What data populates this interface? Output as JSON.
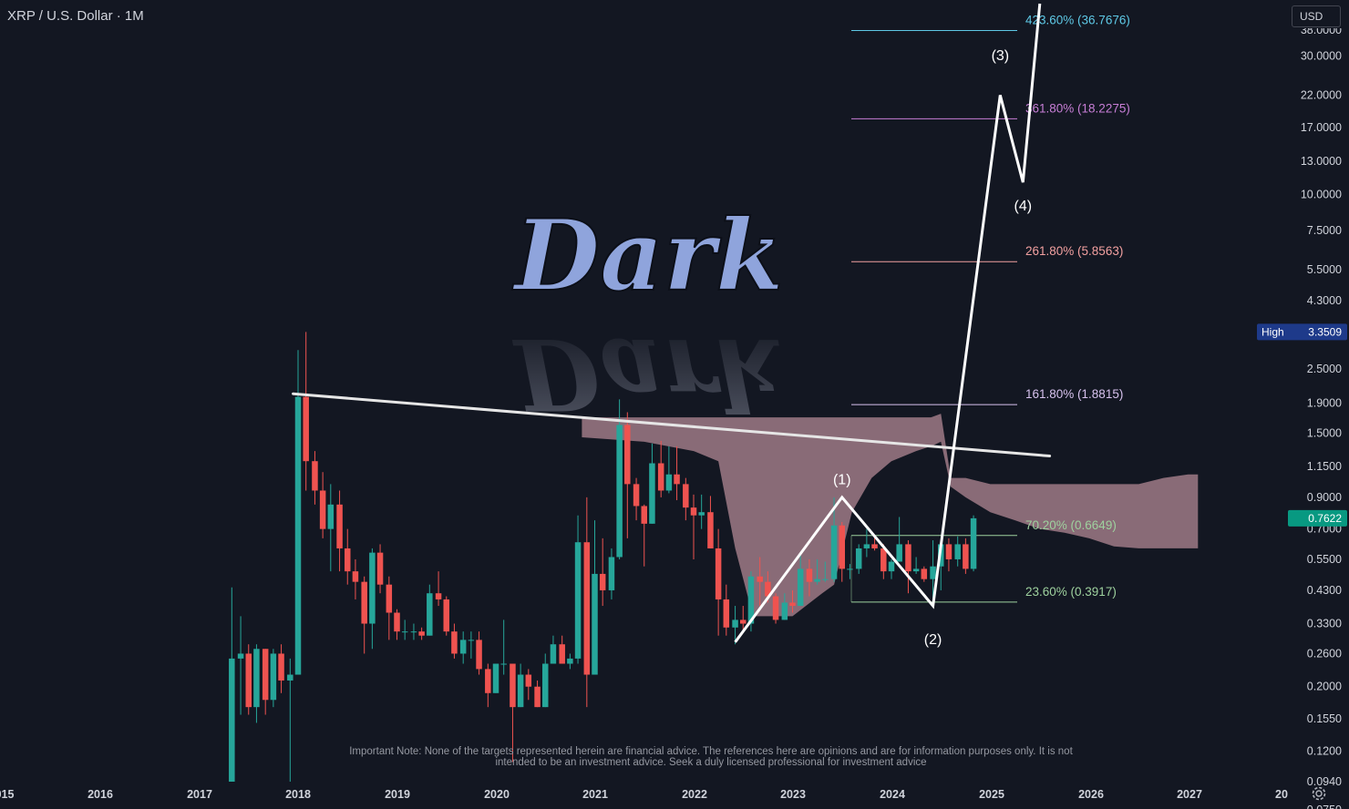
{
  "header": {
    "symbol_title": "XRP / U.S. Dollar · 1M",
    "currency": "USD"
  },
  "watermark_text": "Dark",
  "disclaimer": "Important Note: None of the targets represented herein are financial advice. The references here are opinions and are for information purposes only. It is not intended to be an investment advice. Seek a duly licensed professional for investment advice",
  "icons": {
    "settings": "gear-icon"
  },
  "colors": {
    "background": "#131722",
    "up_candle": "#26a69a",
    "down_candle": "#ef5350",
    "cloud": "#d9a4b0",
    "trendline": "#e6e6e6",
    "wave_path": "#ffffff",
    "high_badge": "#1e3a8a",
    "last_price_badge": "#089981"
  },
  "chart_data": {
    "type": "candlestick",
    "title": "XRP / U.S. Dollar · 1M",
    "y_scale": "log",
    "ylim": [
      0.075,
      38
    ],
    "xlim": [
      2014.98,
      2027.9
    ],
    "grid": false,
    "y_ticks": [
      "30.0000",
      "22.0000",
      "17.0000",
      "13.0000",
      "10.0000",
      "7.5000",
      "5.5000",
      "4.3000",
      "2.5000",
      "1.9000",
      "1.5000",
      "1.1500",
      "0.9000",
      "0.7000",
      "0.5500",
      "0.4300",
      "0.3300",
      "0.2600",
      "0.2000",
      "0.1550",
      "0.1200",
      "0.0940",
      "0.0750"
    ],
    "x_ticks": [
      "015",
      "2016",
      "2017",
      "2018",
      "2019",
      "2020",
      "2021",
      "2022",
      "2023",
      "2024",
      "2025",
      "2026",
      "2027",
      "20"
    ],
    "price_badges": [
      {
        "label": "High",
        "value": "3.3509"
      },
      {
        "label": "",
        "value": "0.7622"
      }
    ],
    "fib_levels": [
      {
        "label": "423.60% (36.7676)",
        "value": 36.7676,
        "color": "#5ec8e5"
      },
      {
        "label": "361.80% (18.2275)",
        "value": 18.2275,
        "color": "#c77ed6"
      },
      {
        "label": "261.80% (5.8563)",
        "value": 5.8563,
        "color": "#f2a0a0"
      },
      {
        "label": "161.80% (1.8815)",
        "value": 1.8815,
        "color": "#d7c2ee"
      },
      {
        "label": "70.20% (0.6649)",
        "value": 0.6649,
        "color": "#9ed19e"
      },
      {
        "label": "23.60% (0.3917)",
        "value": 0.3917,
        "color": "#9ed19e"
      }
    ],
    "wave_labels": [
      {
        "label": "(1)",
        "x": 2023.5,
        "y": 1.0
      },
      {
        "label": "(2)",
        "x": 2024.42,
        "y": 0.28
      },
      {
        "label": "(3)",
        "x": 2025.1,
        "y": 29
      },
      {
        "label": "(4)",
        "x": 2025.33,
        "y": 8.8
      }
    ],
    "wave_path": [
      {
        "x": 2022.42,
        "y": 0.285
      },
      {
        "x": 2023.5,
        "y": 0.9
      },
      {
        "x": 2024.42,
        "y": 0.38
      },
      {
        "x": 2025.1,
        "y": 22
      },
      {
        "x": 2025.33,
        "y": 11
      },
      {
        "x": 2025.5,
        "y": 47
      }
    ],
    "trendline": [
      {
        "x": 2017.95,
        "y": 2.05
      },
      {
        "x": 2025.6,
        "y": 1.25
      }
    ],
    "cloud": {
      "x": [
        2020.87,
        2021.5,
        2022.0,
        2022.25,
        2022.42,
        2022.6,
        2023.0,
        2023.3,
        2023.42,
        2023.6,
        2023.8,
        2024.0,
        2024.25,
        2024.4,
        2024.5,
        2024.6,
        2024.75,
        2025.0,
        2025.25,
        2025.5,
        2025.75,
        2026.0,
        2026.25,
        2026.5,
        2026.75,
        2027.0,
        2027.1
      ],
      "upper": [
        1.7,
        1.7,
        1.7,
        1.7,
        1.7,
        1.7,
        1.7,
        1.7,
        1.7,
        1.7,
        1.7,
        1.7,
        1.7,
        1.7,
        1.75,
        1.05,
        1.05,
        1.0,
        1.0,
        1.0,
        1.0,
        1.0,
        1.0,
        1.0,
        1.05,
        1.08,
        1.08
      ],
      "lower": [
        1.45,
        1.4,
        1.3,
        1.2,
        0.6,
        0.35,
        0.35,
        0.42,
        0.45,
        0.8,
        1.05,
        1.2,
        1.3,
        1.35,
        1.4,
        0.98,
        0.9,
        0.8,
        0.75,
        0.7,
        0.68,
        0.65,
        0.61,
        0.6,
        0.6,
        0.6,
        0.6
      ]
    },
    "candles": [
      {
        "x": 2017.33,
        "o": 0.05,
        "h": 0.44,
        "l": 0.05,
        "c": 0.25
      },
      {
        "x": 2017.42,
        "o": 0.25,
        "h": 0.35,
        "l": 0.16,
        "c": 0.26
      },
      {
        "x": 2017.5,
        "o": 0.26,
        "h": 0.28,
        "l": 0.16,
        "c": 0.17
      },
      {
        "x": 2017.58,
        "o": 0.17,
        "h": 0.28,
        "l": 0.15,
        "c": 0.27
      },
      {
        "x": 2017.67,
        "o": 0.27,
        "h": 0.27,
        "l": 0.16,
        "c": 0.18
      },
      {
        "x": 2017.75,
        "o": 0.18,
        "h": 0.27,
        "l": 0.17,
        "c": 0.26
      },
      {
        "x": 2017.83,
        "o": 0.26,
        "h": 0.28,
        "l": 0.19,
        "c": 0.21
      },
      {
        "x": 2017.92,
        "o": 0.21,
        "h": 0.25,
        "l": 0.05,
        "c": 0.22
      },
      {
        "x": 2018.0,
        "o": 0.22,
        "h": 2.9,
        "l": 0.22,
        "c": 2.0
      },
      {
        "x": 2018.08,
        "o": 2.0,
        "h": 3.35,
        "l": 0.95,
        "c": 1.2
      },
      {
        "x": 2018.17,
        "o": 1.2,
        "h": 1.3,
        "l": 0.85,
        "c": 0.95
      },
      {
        "x": 2018.25,
        "o": 0.95,
        "h": 1.1,
        "l": 0.65,
        "c": 0.7
      },
      {
        "x": 2018.33,
        "o": 0.7,
        "h": 1.0,
        "l": 0.5,
        "c": 0.85
      },
      {
        "x": 2018.42,
        "o": 0.85,
        "h": 0.95,
        "l": 0.5,
        "c": 0.6
      },
      {
        "x": 2018.5,
        "o": 0.6,
        "h": 0.7,
        "l": 0.45,
        "c": 0.5
      },
      {
        "x": 2018.58,
        "o": 0.5,
        "h": 0.55,
        "l": 0.4,
        "c": 0.46
      },
      {
        "x": 2018.67,
        "o": 0.46,
        "h": 0.48,
        "l": 0.26,
        "c": 0.33
      },
      {
        "x": 2018.75,
        "o": 0.33,
        "h": 0.6,
        "l": 0.27,
        "c": 0.58
      },
      {
        "x": 2018.83,
        "o": 0.58,
        "h": 0.62,
        "l": 0.42,
        "c": 0.45
      },
      {
        "x": 2018.92,
        "o": 0.45,
        "h": 0.48,
        "l": 0.29,
        "c": 0.36
      },
      {
        "x": 2019.0,
        "o": 0.36,
        "h": 0.37,
        "l": 0.29,
        "c": 0.31
      },
      {
        "x": 2019.08,
        "o": 0.31,
        "h": 0.34,
        "l": 0.29,
        "c": 0.31
      },
      {
        "x": 2019.17,
        "o": 0.31,
        "h": 0.33,
        "l": 0.29,
        "c": 0.31
      },
      {
        "x": 2019.25,
        "o": 0.31,
        "h": 0.32,
        "l": 0.29,
        "c": 0.3
      },
      {
        "x": 2019.33,
        "o": 0.3,
        "h": 0.45,
        "l": 0.3,
        "c": 0.42
      },
      {
        "x": 2019.42,
        "o": 0.42,
        "h": 0.5,
        "l": 0.38,
        "c": 0.4
      },
      {
        "x": 2019.5,
        "o": 0.4,
        "h": 0.41,
        "l": 0.3,
        "c": 0.31
      },
      {
        "x": 2019.58,
        "o": 0.31,
        "h": 0.33,
        "l": 0.25,
        "c": 0.26
      },
      {
        "x": 2019.67,
        "o": 0.26,
        "h": 0.31,
        "l": 0.24,
        "c": 0.29
      },
      {
        "x": 2019.75,
        "o": 0.29,
        "h": 0.31,
        "l": 0.25,
        "c": 0.29
      },
      {
        "x": 2019.83,
        "o": 0.29,
        "h": 0.31,
        "l": 0.22,
        "c": 0.23
      },
      {
        "x": 2019.92,
        "o": 0.23,
        "h": 0.24,
        "l": 0.17,
        "c": 0.19
      },
      {
        "x": 2020.0,
        "o": 0.19,
        "h": 0.24,
        "l": 0.19,
        "c": 0.24
      },
      {
        "x": 2020.08,
        "o": 0.24,
        "h": 0.34,
        "l": 0.22,
        "c": 0.24
      },
      {
        "x": 2020.17,
        "o": 0.24,
        "h": 0.24,
        "l": 0.11,
        "c": 0.17
      },
      {
        "x": 2020.25,
        "o": 0.17,
        "h": 0.24,
        "l": 0.17,
        "c": 0.22
      },
      {
        "x": 2020.33,
        "o": 0.22,
        "h": 0.23,
        "l": 0.18,
        "c": 0.2
      },
      {
        "x": 2020.42,
        "o": 0.2,
        "h": 0.21,
        "l": 0.17,
        "c": 0.17
      },
      {
        "x": 2020.5,
        "o": 0.17,
        "h": 0.26,
        "l": 0.17,
        "c": 0.24
      },
      {
        "x": 2020.58,
        "o": 0.24,
        "h": 0.3,
        "l": 0.24,
        "c": 0.28
      },
      {
        "x": 2020.67,
        "o": 0.28,
        "h": 0.3,
        "l": 0.24,
        "c": 0.24
      },
      {
        "x": 2020.75,
        "o": 0.24,
        "h": 0.26,
        "l": 0.23,
        "c": 0.25
      },
      {
        "x": 2020.83,
        "o": 0.25,
        "h": 0.78,
        "l": 0.24,
        "c": 0.63
      },
      {
        "x": 2020.92,
        "o": 0.63,
        "h": 0.9,
        "l": 0.17,
        "c": 0.22
      },
      {
        "x": 2021.0,
        "o": 0.22,
        "h": 0.75,
        "l": 0.22,
        "c": 0.49
      },
      {
        "x": 2021.08,
        "o": 0.49,
        "h": 0.65,
        "l": 0.38,
        "c": 0.43
      },
      {
        "x": 2021.17,
        "o": 0.43,
        "h": 0.6,
        "l": 0.4,
        "c": 0.56
      },
      {
        "x": 2021.25,
        "o": 0.56,
        "h": 1.96,
        "l": 0.55,
        "c": 1.6
      },
      {
        "x": 2021.33,
        "o": 1.6,
        "h": 1.77,
        "l": 0.65,
        "c": 1.0
      },
      {
        "x": 2021.42,
        "o": 1.0,
        "h": 1.05,
        "l": 0.75,
        "c": 0.84
      },
      {
        "x": 2021.5,
        "o": 0.84,
        "h": 0.85,
        "l": 0.52,
        "c": 0.73
      },
      {
        "x": 2021.58,
        "o": 0.73,
        "h": 1.38,
        "l": 0.73,
        "c": 1.18
      },
      {
        "x": 2021.67,
        "o": 1.18,
        "h": 1.41,
        "l": 0.9,
        "c": 0.95
      },
      {
        "x": 2021.75,
        "o": 0.95,
        "h": 1.35,
        "l": 0.93,
        "c": 1.08
      },
      {
        "x": 2021.83,
        "o": 1.08,
        "h": 1.35,
        "l": 0.88,
        "c": 1.0
      },
      {
        "x": 2021.92,
        "o": 1.0,
        "h": 1.05,
        "l": 0.75,
        "c": 0.83
      },
      {
        "x": 2022.0,
        "o": 0.83,
        "h": 0.92,
        "l": 0.55,
        "c": 0.78
      },
      {
        "x": 2022.08,
        "o": 0.78,
        "h": 0.92,
        "l": 0.7,
        "c": 0.8
      },
      {
        "x": 2022.17,
        "o": 0.8,
        "h": 0.91,
        "l": 0.6,
        "c": 0.6
      },
      {
        "x": 2022.25,
        "o": 0.6,
        "h": 0.7,
        "l": 0.3,
        "c": 0.4
      },
      {
        "x": 2022.33,
        "o": 0.4,
        "h": 0.45,
        "l": 0.3,
        "c": 0.32
      },
      {
        "x": 2022.42,
        "o": 0.32,
        "h": 0.38,
        "l": 0.28,
        "c": 0.34
      },
      {
        "x": 2022.5,
        "o": 0.34,
        "h": 0.38,
        "l": 0.31,
        "c": 0.33
      },
      {
        "x": 2022.58,
        "o": 0.33,
        "h": 0.5,
        "l": 0.31,
        "c": 0.48
      },
      {
        "x": 2022.67,
        "o": 0.48,
        "h": 0.56,
        "l": 0.38,
        "c": 0.46
      },
      {
        "x": 2022.75,
        "o": 0.46,
        "h": 0.5,
        "l": 0.39,
        "c": 0.41
      },
      {
        "x": 2022.83,
        "o": 0.41,
        "h": 0.42,
        "l": 0.33,
        "c": 0.34
      },
      {
        "x": 2022.92,
        "o": 0.34,
        "h": 0.42,
        "l": 0.34,
        "c": 0.39
      },
      {
        "x": 2023.0,
        "o": 0.39,
        "h": 0.43,
        "l": 0.36,
        "c": 0.38
      },
      {
        "x": 2023.08,
        "o": 0.38,
        "h": 0.58,
        "l": 0.38,
        "c": 0.51
      },
      {
        "x": 2023.17,
        "o": 0.51,
        "h": 0.55,
        "l": 0.41,
        "c": 0.46
      },
      {
        "x": 2023.25,
        "o": 0.46,
        "h": 0.55,
        "l": 0.45,
        "c": 0.47
      },
      {
        "x": 2023.33,
        "o": 0.47,
        "h": 0.54,
        "l": 0.46,
        "c": 0.47
      },
      {
        "x": 2023.42,
        "o": 0.47,
        "h": 0.9,
        "l": 0.46,
        "c": 0.72
      },
      {
        "x": 2023.5,
        "o": 0.72,
        "h": 0.74,
        "l": 0.46,
        "c": 0.51
      },
      {
        "x": 2023.58,
        "o": 0.51,
        "h": 0.53,
        "l": 0.47,
        "c": 0.51
      },
      {
        "x": 2023.67,
        "o": 0.51,
        "h": 0.62,
        "l": 0.49,
        "c": 0.6
      },
      {
        "x": 2023.75,
        "o": 0.6,
        "h": 0.7,
        "l": 0.56,
        "c": 0.62
      },
      {
        "x": 2023.83,
        "o": 0.62,
        "h": 0.66,
        "l": 0.59,
        "c": 0.6
      },
      {
        "x": 2023.92,
        "o": 0.6,
        "h": 0.62,
        "l": 0.47,
        "c": 0.5
      },
      {
        "x": 2024.0,
        "o": 0.5,
        "h": 0.55,
        "l": 0.47,
        "c": 0.54
      },
      {
        "x": 2024.08,
        "o": 0.54,
        "h": 0.77,
        "l": 0.54,
        "c": 0.62
      },
      {
        "x": 2024.17,
        "o": 0.62,
        "h": 0.64,
        "l": 0.42,
        "c": 0.5
      },
      {
        "x": 2024.25,
        "o": 0.5,
        "h": 0.56,
        "l": 0.49,
        "c": 0.51
      },
      {
        "x": 2024.33,
        "o": 0.51,
        "h": 0.52,
        "l": 0.46,
        "c": 0.47
      },
      {
        "x": 2024.42,
        "o": 0.47,
        "h": 0.64,
        "l": 0.38,
        "c": 0.52
      },
      {
        "x": 2024.5,
        "o": 0.52,
        "h": 0.64,
        "l": 0.43,
        "c": 0.62
      },
      {
        "x": 2024.58,
        "o": 0.62,
        "h": 0.65,
        "l": 0.5,
        "c": 0.55
      },
      {
        "x": 2024.67,
        "o": 0.55,
        "h": 0.66,
        "l": 0.52,
        "c": 0.62
      },
      {
        "x": 2024.75,
        "o": 0.62,
        "h": 0.65,
        "l": 0.49,
        "c": 0.51
      },
      {
        "x": 2024.83,
        "o": 0.51,
        "h": 0.78,
        "l": 0.5,
        "c": 0.7622
      }
    ]
  }
}
